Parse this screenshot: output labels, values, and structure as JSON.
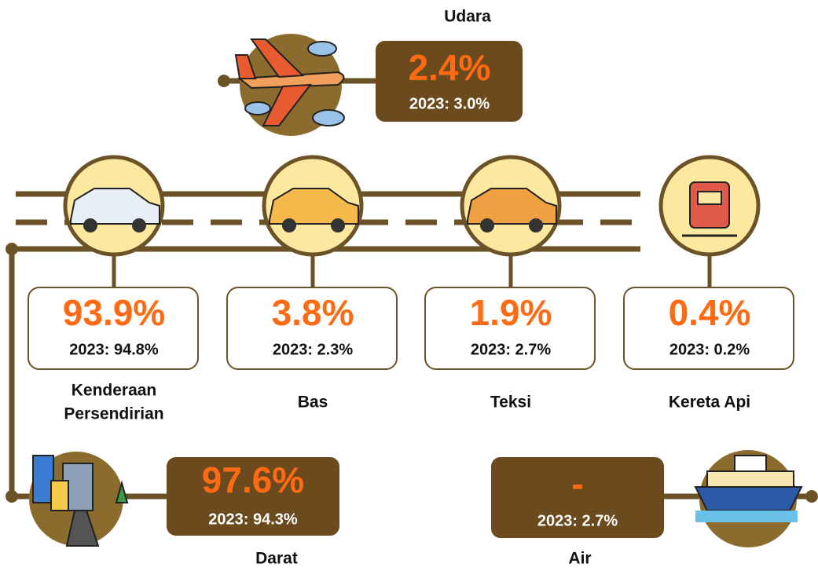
{
  "udara": {
    "label": "Udara",
    "share": "2.4%",
    "previous": "2023: 3.0%"
  },
  "modes": [
    {
      "label": [
        "Kenderaan",
        "Persendirian"
      ],
      "share": "93.9%",
      "previous": "2023: 94.8%"
    },
    {
      "label": [
        "Bas"
      ],
      "share": "3.8%",
      "previous": "2023: 2.3%"
    },
    {
      "label": [
        "Teksi"
      ],
      "share": "1.9%",
      "previous": "2023: 2.7%"
    },
    {
      "label": [
        "Kereta Api"
      ],
      "share": "0.4%",
      "previous": "2023: 0.2%"
    }
  ],
  "darat": {
    "label": "Darat",
    "share": "97.6%",
    "previous": "2023: 94.3%"
  },
  "air": {
    "label": "Air",
    "share": "-",
    "previous": "2023: 2.7%"
  }
}
